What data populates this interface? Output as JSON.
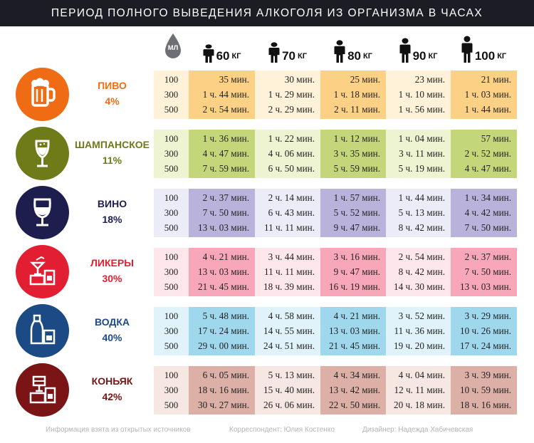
{
  "title": "ПЕРИОД ПОЛНОГО ВЫВЕДЕНИЯ АЛКОГОЛЯ ИЗ ОРГАНИЗМА В ЧАСАХ",
  "ml_label": "МЛ",
  "weights": [
    {
      "value": "60",
      "unit": "КГ"
    },
    {
      "value": "70",
      "unit": "КГ"
    },
    {
      "value": "80",
      "unit": "КГ"
    },
    {
      "value": "90",
      "unit": "КГ"
    },
    {
      "value": "100",
      "unit": "КГ"
    }
  ],
  "volumes": [
    "100",
    "300",
    "500"
  ],
  "drinks": [
    {
      "name": "ПИВО",
      "percent": "4%",
      "icon": "beer-mug-icon",
      "color": "#ef6c14",
      "column_colors": [
        "#fcd186",
        "#fff2d9",
        "#fcd186",
        "#fff2d9",
        "#fcd186"
      ],
      "ml_color": "#fff2d9",
      "times": [
        [
          "35 мин.",
          "30 мин.",
          "25 мин.",
          "23 мин.",
          "21 мин."
        ],
        [
          "1 ч. 44 мин.",
          "1 ч. 29 мин.",
          "1 ч. 18 мин.",
          "1 ч. 10 мин.",
          "1 ч. 03 мин."
        ],
        [
          "2 ч. 54 мин.",
          "2 ч. 29 мин.",
          "2 ч. 11 мин.",
          "1 ч. 56 мин.",
          "1 ч. 44 мин."
        ]
      ]
    },
    {
      "name": "ШАМПАНСКОЕ",
      "percent": "11%",
      "icon": "champagne-glass-icon",
      "color": "#6f7a18",
      "column_colors": [
        "#c3d77a",
        "#eef4d2",
        "#c3d77a",
        "#eef4d2",
        "#c3d77a"
      ],
      "ml_color": "#eef4d2",
      "times": [
        [
          "1 ч. 36 мин.",
          "1 ч. 22 мин.",
          "1 ч. 12 мин.",
          "1 ч. 04 мин.",
          "57 мин."
        ],
        [
          "4 ч. 47 мин.",
          "4 ч. 06 мин.",
          "3 ч. 35 мин.",
          "3 ч. 11 мин.",
          "2 ч. 52 мин."
        ],
        [
          "7 ч. 59 мин.",
          "6 ч. 50 мин.",
          "5 ч. 59 мин.",
          "5 ч. 19 мин.",
          "4 ч. 47 мин."
        ]
      ]
    },
    {
      "name": "ВИНО",
      "percent": "18%",
      "icon": "wine-glass-icon",
      "color": "#1d1e4e",
      "column_colors": [
        "#b9b3dc",
        "#ececf8",
        "#b9b3dc",
        "#ececf8",
        "#b9b3dc"
      ],
      "ml_color": "#ececf8",
      "times": [
        [
          "2 ч. 37 мин.",
          "2 ч. 14 мин.",
          "1 ч. 57 мин.",
          "1 ч. 44 мин.",
          "1 ч. 34 мин."
        ],
        [
          "7 ч. 50 мин.",
          "6 ч. 43 мин.",
          "5 ч. 52 мин.",
          "5 ч. 13 мин.",
          "4 ч. 42 мин."
        ],
        [
          "13 ч. 03 мин.",
          "11 ч. 11 мин.",
          "9 ч. 47 мин.",
          "8 ч. 42 мин.",
          "7 ч. 50 мин."
        ]
      ]
    },
    {
      "name": "ЛИКЕРЫ",
      "percent": "30%",
      "icon": "liqueur-glasses-icon",
      "color": "#e21f32",
      "column_colors": [
        "#f7a7b8",
        "#fde6ec",
        "#f7a7b8",
        "#fde6ec",
        "#f7a7b8"
      ],
      "ml_color": "#fde6ec",
      "times": [
        [
          "4 ч. 21 мин.",
          "3 ч. 44 мин.",
          "3 ч. 16 мин.",
          "2 ч. 54 мин.",
          "2 ч. 37 мин."
        ],
        [
          "13 ч. 03 мин.",
          "11 ч. 11 мин.",
          "9 ч. 47 мин.",
          "8 ч. 42 мин.",
          "7 ч. 50 мин."
        ],
        [
          "21 ч. 45 мин.",
          "18 ч. 39 мин.",
          "16 ч. 19 мин.",
          "14 ч. 30 мин.",
          "13 ч. 03 мин."
        ]
      ]
    },
    {
      "name": "ВОДКА",
      "percent": "40%",
      "icon": "vodka-bottle-icon",
      "color": "#1b4a85",
      "column_colors": [
        "#9fd8ec",
        "#e1f3fa",
        "#9fd8ec",
        "#e1f3fa",
        "#9fd8ec"
      ],
      "ml_color": "#e1f3fa",
      "times": [
        [
          "5 ч. 48 мин.",
          "4 ч. 58 мин.",
          "4 ч. 21 мин.",
          "3 ч. 52 мин.",
          "3 ч. 29 мин."
        ],
        [
          "17 ч. 24 мин.",
          "14 ч. 55 мин.",
          "13 ч. 03 мин.",
          "11 ч. 36 мин.",
          "10 ч. 26 мин."
        ],
        [
          "29 ч. 00 мин.",
          "24 ч. 51 мин.",
          "21 ч. 45 мин.",
          "19 ч. 20 мин.",
          "17 ч. 24 мин."
        ]
      ]
    },
    {
      "name": "КОНЬЯК",
      "percent": "42%",
      "icon": "cognac-glasses-icon",
      "color": "#7b1414",
      "column_colors": [
        "#dcb0a6",
        "#f6e7e3",
        "#dcb0a6",
        "#f6e7e3",
        "#dcb0a6"
      ],
      "ml_color": "#f6e7e3",
      "times": [
        [
          "6 ч. 05 мин.",
          "5 ч. 13 мин.",
          "4 ч. 34 мин.",
          "4 ч. 04 мин.",
          "3 ч. 39 мин."
        ],
        [
          "18 ч. 16 мин.",
          "15 ч. 40 мин.",
          "13 ч. 42 мин.",
          "12 ч. 11 мин.",
          "10 ч. 59 мин."
        ],
        [
          "30 ч. 27 мин.",
          "26 ч. 06 мин.",
          "22 ч. 50 мин.",
          "20 ч. 18 мин.",
          "18 ч. 16 мин."
        ]
      ]
    }
  ],
  "footer": {
    "source": "Информация взята из открытых источников",
    "correspondent": "Корреспондент: Юлия Костенко",
    "designer": "Дизайнер: Надежда Хабичевская"
  }
}
